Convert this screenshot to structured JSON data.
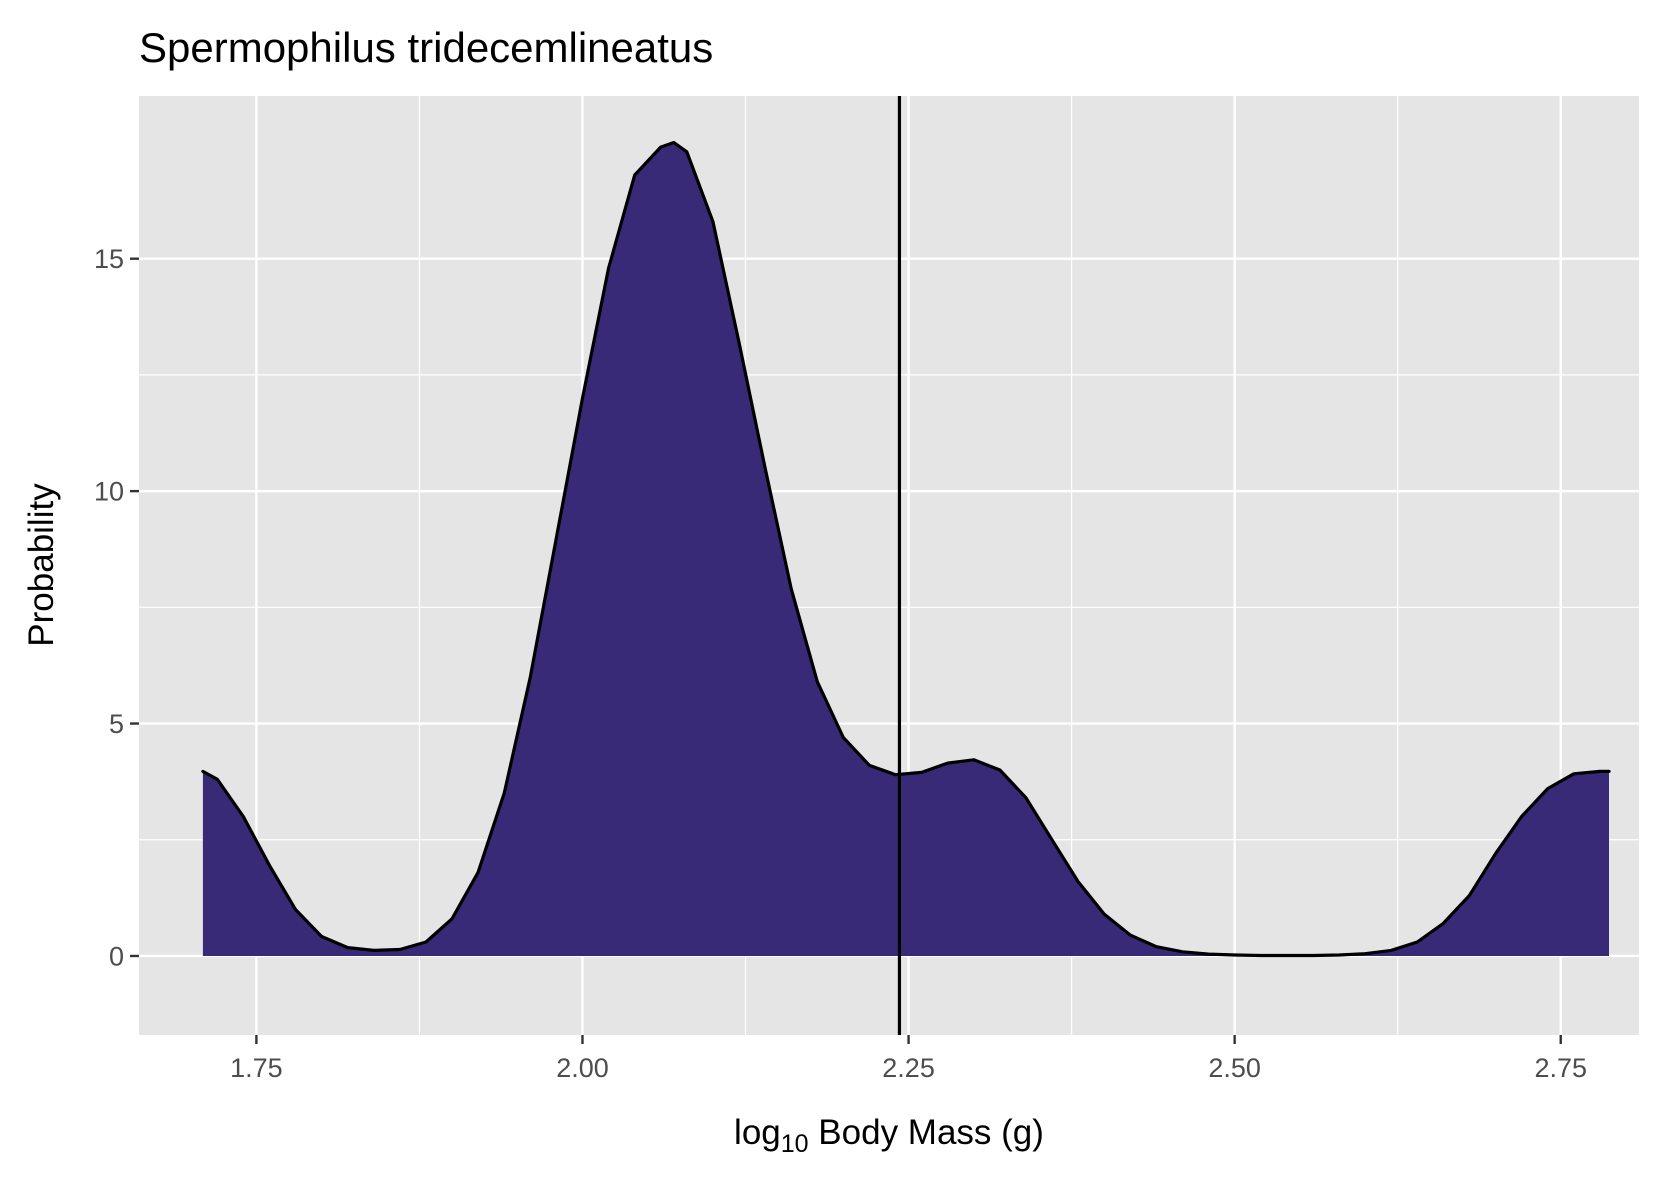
{
  "chart_data": {
    "type": "area",
    "title": "Spermophilus tridecemlineatus",
    "xlabel_main": "log",
    "xlabel_sub": "10",
    "xlabel_rest": " Body Mass (g)",
    "ylabel": "Probability",
    "xlim": [
      1.66,
      2.81
    ],
    "ylim": [
      -1.7,
      18.5
    ],
    "x_ticks": [
      1.75,
      2.0,
      2.25,
      2.5,
      2.75
    ],
    "x_tick_labels": [
      "1.75",
      "2.00",
      "2.25",
      "2.50",
      "2.75"
    ],
    "y_ticks": [
      0,
      5,
      10,
      15
    ],
    "y_tick_labels": [
      "0",
      "5",
      "10",
      "15"
    ],
    "grid": true,
    "panel_background": "#e5e5e5",
    "fill_color": "#382a77",
    "line_color": "#000000",
    "vline_x": 2.243,
    "series": [
      {
        "x": [
          1.709,
          1.72,
          1.74,
          1.76,
          1.78,
          1.8,
          1.82,
          1.84,
          1.86,
          1.88,
          1.9,
          1.92,
          1.94,
          1.96,
          1.98,
          2.0,
          2.02,
          2.04,
          2.06,
          2.07,
          2.08,
          2.1,
          2.12,
          2.14,
          2.16,
          2.18,
          2.2,
          2.22,
          2.24,
          2.26,
          2.28,
          2.3,
          2.32,
          2.34,
          2.36,
          2.38,
          2.4,
          2.42,
          2.44,
          2.46,
          2.48,
          2.5,
          2.52,
          2.54,
          2.56,
          2.58,
          2.6,
          2.62,
          2.64,
          2.66,
          2.68,
          2.7,
          2.72,
          2.74,
          2.76,
          2.78,
          2.787
        ],
        "y": [
          3.97,
          3.8,
          3.0,
          1.95,
          1.0,
          0.42,
          0.18,
          0.12,
          0.14,
          0.3,
          0.8,
          1.8,
          3.5,
          6.0,
          9.0,
          12.0,
          14.8,
          16.8,
          17.4,
          17.5,
          17.3,
          15.8,
          13.2,
          10.5,
          7.9,
          5.9,
          4.7,
          4.1,
          3.9,
          3.95,
          4.15,
          4.22,
          4.0,
          3.4,
          2.5,
          1.6,
          0.9,
          0.45,
          0.2,
          0.09,
          0.04,
          0.02,
          0.01,
          0.01,
          0.01,
          0.02,
          0.05,
          0.12,
          0.3,
          0.7,
          1.3,
          2.2,
          3.0,
          3.6,
          3.92,
          3.97,
          3.97
        ]
      }
    ]
  }
}
